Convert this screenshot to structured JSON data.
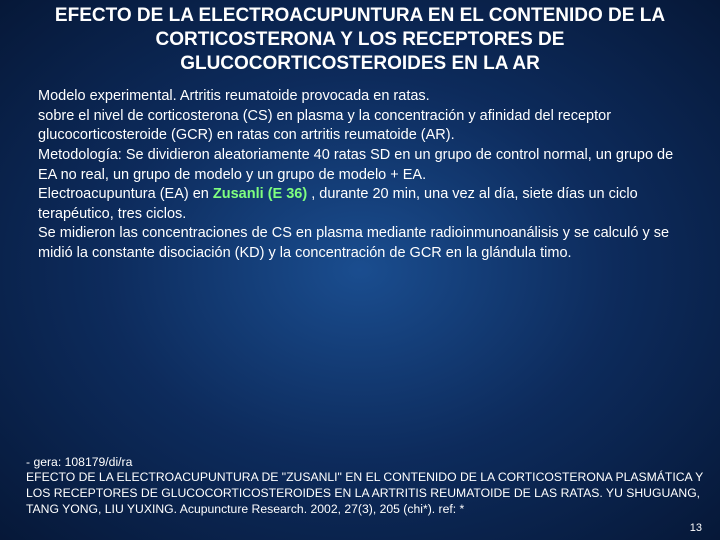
{
  "title": "EFECTO DE LA ELECTROACUPUNTURA EN EL CONTENIDO DE LA CORTICOSTERONA  Y LOS RECEPTORES DE GLUCOCORTICOSTEROIDES EN LA AR",
  "body": {
    "p1": "Modelo experimental. Artritis reumatoide provocada en ratas.",
    "p2": "sobre el nivel de corticosterona (CS) en plasma y la concentración y afinidad del receptor glucocorticosteroide (GCR) en ratas con artritis reumatoide (AR).",
    "p3a": "Metodología: Se dividieron aleatoriamente 40 ratas SD en un grupo de control normal, un grupo de EA no real, un grupo de modelo y un grupo de modelo + EA.",
    "p4a": "Electroacupuntura (EA) en ",
    "p4h": "Zusanli (E 36) ",
    "p4b": ", durante 20 min, una vez al día, siete días un ciclo terapéutico, tres ciclos.",
    "p5": "Se midieron las concentraciones de CS en plasma mediante radioinmunoanálisis y se calculó y se midió la constante disociación (KD) y la concentración de GCR en la glándula timo."
  },
  "footer": {
    "f1": "- gera: 108179/di/ra",
    "f2": "EFECTO DE LA ELECTROACUPUNTURA DE \"ZUSANLI\" EN EL CONTENIDO DE LA CORTICOSTERONA PLASMÁTICA  Y LOS RECEPTORES DE GLUCOCORTICOSTEROIDES EN LA ARTRITIS REUMATOIDE DE LAS RATAS. YU SHUGUANG, TANG YONG, LIU YUXING. Acupuncture Research. 2002, 27(3), 205 (chi*). ref: *"
  },
  "page_number": "13",
  "colors": {
    "bg_center": "#1a4d8f",
    "bg_mid": "#0d2b5c",
    "bg_edge": "#061838",
    "text": "#ffffff",
    "highlight": "#7fff7f"
  },
  "typography": {
    "title_fontsize": 19,
    "body_fontsize": 14.5,
    "footer_fontsize": 12.2,
    "pagenum_fontsize": 11,
    "font_family": "Verdana"
  }
}
